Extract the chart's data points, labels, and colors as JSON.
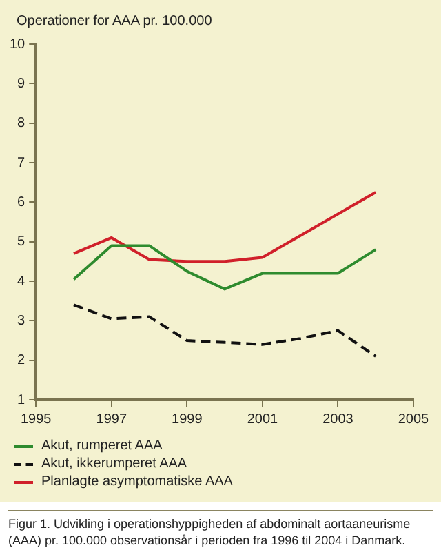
{
  "chart_data": {
    "type": "line",
    "ylabel": "Operationer for AAA pr. 100.000",
    "x": [
      1996,
      1997,
      1998,
      1999,
      2000,
      2001,
      2002,
      2003,
      2004
    ],
    "series": [
      {
        "name": "Akut, rumperet AAA",
        "color": "#2e8b2e",
        "values": [
          4.05,
          4.9,
          4.9,
          4.25,
          3.8,
          4.2,
          4.2,
          4.2,
          4.8
        ]
      },
      {
        "name": "Akut, ikkerumperet AAA",
        "color": "#111111",
        "line_style": "dashed",
        "values": [
          3.4,
          3.05,
          3.1,
          2.5,
          2.45,
          2.4,
          2.55,
          2.75,
          2.1
        ]
      },
      {
        "name": "Planlagte asymptomatiske AAA",
        "color": "#d0202a",
        "values": [
          4.7,
          5.1,
          4.55,
          4.5,
          4.5,
          4.6,
          5.15,
          5.7,
          6.25
        ]
      }
    ],
    "xlim": [
      1995,
      2005
    ],
    "xticks": [
      1995,
      1997,
      1999,
      2001,
      2003,
      2005
    ],
    "ylim": [
      1,
      10
    ],
    "yticks": [
      1,
      2,
      3,
      4,
      5,
      6,
      7,
      8,
      9,
      10
    ],
    "grid": false,
    "legend": "bottom",
    "marker": "none",
    "annotations": [
      "Figur 1. Udvikling i operationshyppigheden af abdominalt aortaaneurisme (AAA) pr. 100.000 observationsår i perioden fra 1996 til 2004 i Danmark."
    ]
  }
}
